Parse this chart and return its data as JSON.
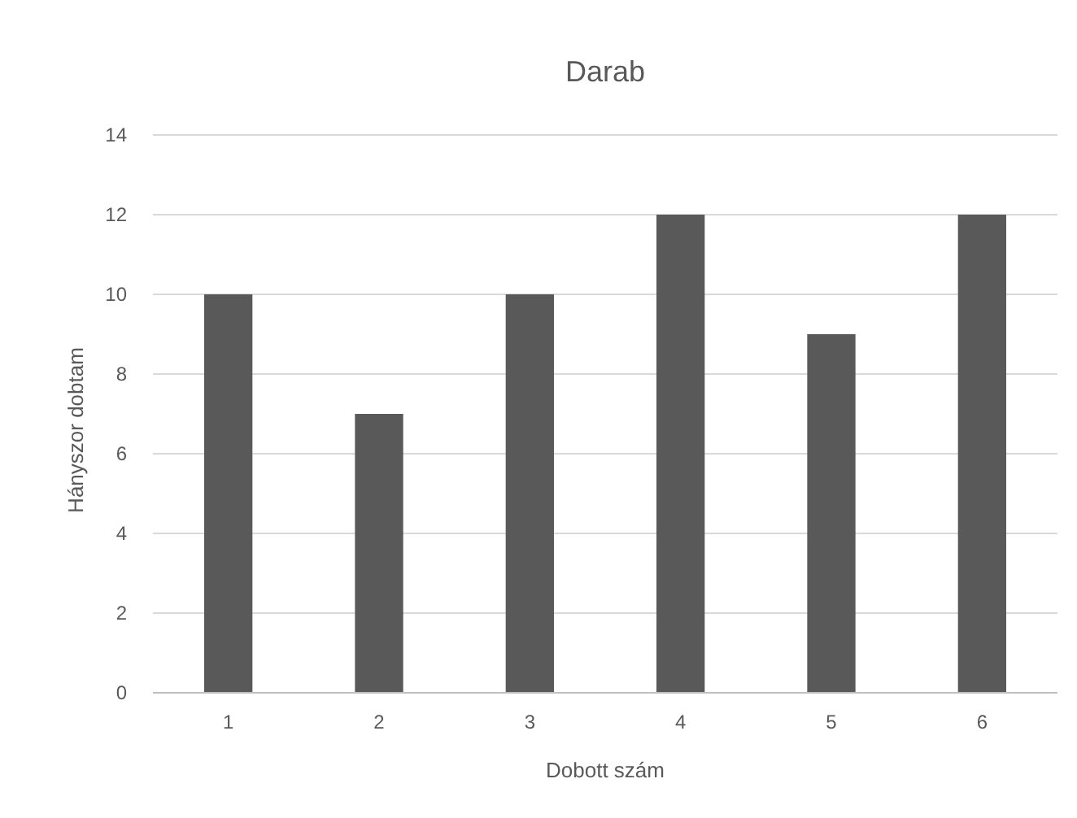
{
  "chart_data": {
    "type": "bar",
    "title": "Darab",
    "xlabel": "Dobott szám",
    "ylabel": "Hányszor dobtam",
    "categories": [
      "1",
      "2",
      "3",
      "4",
      "5",
      "6"
    ],
    "values": [
      10,
      7,
      10,
      12,
      9,
      12
    ],
    "color": "#595959",
    "ylim": [
      0,
      14
    ],
    "yticks": [
      0,
      2,
      4,
      6,
      8,
      10,
      12,
      14
    ],
    "grid": "y"
  }
}
